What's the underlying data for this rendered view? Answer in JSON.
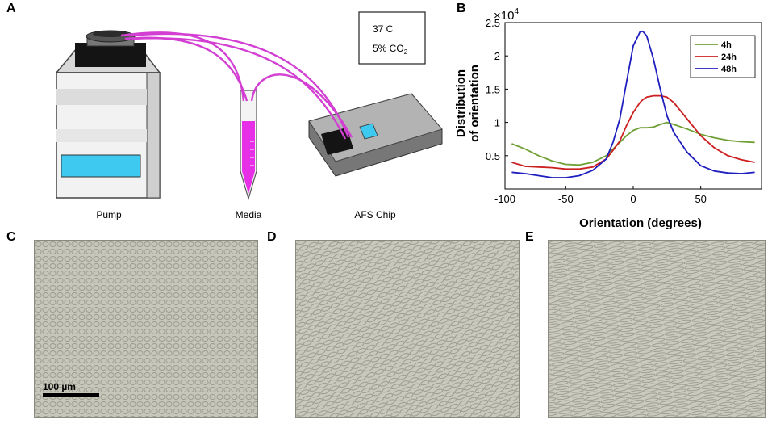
{
  "panels": {
    "a": "A",
    "b": "B",
    "c": "C",
    "d": "D",
    "e": "E"
  },
  "diagram": {
    "pump_label": "Pump",
    "media_label": "Media",
    "chip_label": "AFS Chip",
    "incubator_temp": "37 C",
    "incubator_co2": "5% CO",
    "incubator_co2_sub": "2",
    "colors": {
      "tubing": "#d23fd2",
      "media": "#e62fe6",
      "screen": "#3ec9f0"
    }
  },
  "chart_data": {
    "type": "line",
    "xlabel": "Orientation (degrees)",
    "ylabel": [
      "Distribution",
      "of orientation"
    ],
    "y_multiplier": "×10",
    "y_multiplier_exp": "4",
    "xlim": [
      -95,
      95
    ],
    "ylim": [
      0.0,
      2.5
    ],
    "xticks": [
      -100,
      -50,
      0,
      50
    ],
    "yticks": [
      0.5,
      1.0,
      1.5,
      2.0,
      2.5
    ],
    "ytick_labels": [
      "0.5",
      "1",
      "1.5",
      "2",
      "2.5"
    ],
    "legend_position": "top-right",
    "x": [
      -90,
      -80,
      -70,
      -60,
      -50,
      -40,
      -30,
      -20,
      -15,
      -10,
      -5,
      0,
      5,
      7,
      10,
      15,
      20,
      25,
      30,
      40,
      50,
      60,
      70,
      80,
      90
    ],
    "series": [
      {
        "name": "4h",
        "color": "#6fa035",
        "values": [
          0.68,
          0.6,
          0.5,
          0.42,
          0.37,
          0.36,
          0.4,
          0.5,
          0.6,
          0.7,
          0.8,
          0.88,
          0.92,
          0.92,
          0.92,
          0.93,
          0.97,
          1.0,
          0.97,
          0.9,
          0.82,
          0.77,
          0.73,
          0.71,
          0.7
        ]
      },
      {
        "name": "24h",
        "color": "#cc2020",
        "values": [
          0.4,
          0.34,
          0.33,
          0.32,
          0.3,
          0.3,
          0.33,
          0.45,
          0.58,
          0.72,
          0.95,
          1.15,
          1.3,
          1.34,
          1.38,
          1.4,
          1.4,
          1.38,
          1.3,
          1.05,
          0.8,
          0.62,
          0.5,
          0.44,
          0.4
        ]
      },
      {
        "name": "48h",
        "color": "#1f1fbf",
        "values": [
          0.25,
          0.23,
          0.2,
          0.17,
          0.17,
          0.2,
          0.28,
          0.45,
          0.7,
          1.05,
          1.6,
          2.15,
          2.36,
          2.37,
          2.3,
          1.95,
          1.5,
          1.1,
          0.85,
          0.55,
          0.35,
          0.27,
          0.24,
          0.23,
          0.25
        ]
      }
    ]
  },
  "micrographs": {
    "scale_bar_label": "100 µm"
  }
}
